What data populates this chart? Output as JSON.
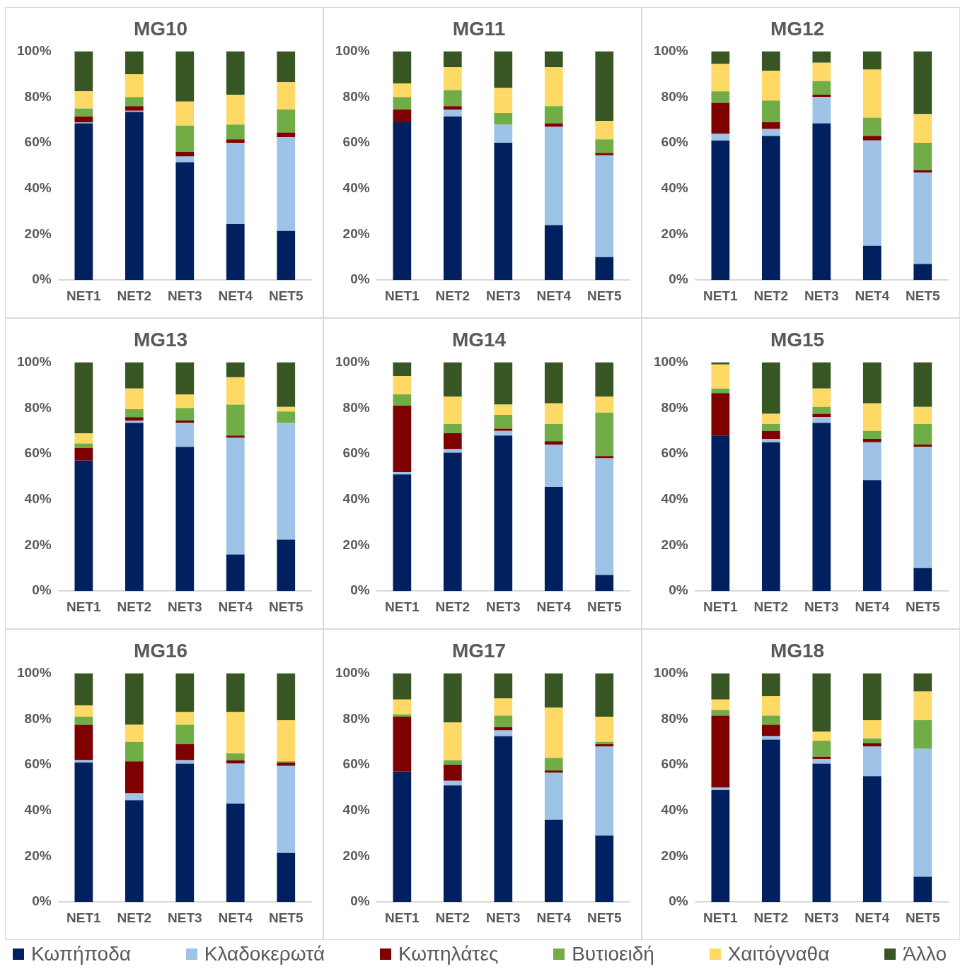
{
  "chart_data": [
    {
      "type": "bar",
      "stacked": true,
      "title": "MG10",
      "categories": [
        "NET1",
        "NET2",
        "NET3",
        "NET4",
        "NET5"
      ],
      "ylim": [
        0,
        100
      ],
      "yticks": [
        {
          "value": 0,
          "label": "0%"
        },
        {
          "value": 20,
          "label": "20%"
        },
        {
          "value": 40,
          "label": "40%"
        },
        {
          "value": 60,
          "label": "60%"
        },
        {
          "value": 80,
          "label": "80%"
        },
        {
          "value": 100,
          "label": "100%"
        }
      ],
      "grid": false,
      "legend": "bottom",
      "series": [
        {
          "name": "Κωπήποδα",
          "color": "#002060",
          "values": [
            68.5,
            73.5,
            51.5,
            24.5,
            21.5
          ]
        },
        {
          "name": "Κλαδοκερωτά",
          "color": "#9dc3e6",
          "values": [
            0.5,
            0.5,
            2.5,
            35.5,
            41
          ]
        },
        {
          "name": "Κωπηλάτες",
          "color": "#7f0000",
          "values": [
            2.5,
            2,
            2,
            1.5,
            2
          ]
        },
        {
          "name": "Βυτιοειδή",
          "color": "#70ad47",
          "values": [
            3.5,
            4,
            11.5,
            6.5,
            10
          ]
        },
        {
          "name": "Χαιτόγναθα",
          "color": "#ffd966",
          "values": [
            7.5,
            10,
            10.5,
            13,
            12
          ]
        },
        {
          "name": "Άλλο",
          "color": "#375623",
          "values": [
            17.5,
            10,
            22,
            19,
            13.5
          ]
        }
      ]
    },
    {
      "type": "bar",
      "stacked": true,
      "title": "MG11",
      "categories": [
        "NET1",
        "NET2",
        "NET3",
        "NET4",
        "NET5"
      ],
      "ylim": [
        0,
        100
      ],
      "yticks": [
        {
          "value": 0,
          "label": "0%"
        },
        {
          "value": 20,
          "label": "20%"
        },
        {
          "value": 40,
          "label": "40%"
        },
        {
          "value": 60,
          "label": "60%"
        },
        {
          "value": 80,
          "label": "80%"
        },
        {
          "value": 100,
          "label": "100%"
        }
      ],
      "grid": false,
      "series": [
        {
          "color": "#002060",
          "values": [
            69,
            71.5,
            60,
            24,
            10
          ]
        },
        {
          "color": "#9dc3e6",
          "values": [
            0,
            3,
            8,
            43,
            44.5
          ]
        },
        {
          "color": "#7f0000",
          "values": [
            5.5,
            1.5,
            0,
            1.5,
            1
          ]
        },
        {
          "color": "#70ad47",
          "values": [
            5.5,
            7,
            5,
            7.5,
            6
          ]
        },
        {
          "color": "#ffd966",
          "values": [
            6,
            10,
            11,
            17,
            8
          ]
        },
        {
          "color": "#375623",
          "values": [
            14,
            7,
            16,
            7,
            30.5
          ]
        }
      ]
    },
    {
      "type": "bar",
      "stacked": true,
      "title": "MG12",
      "categories": [
        "NET1",
        "NET2",
        "NET3",
        "NET4",
        "NET5"
      ],
      "ylim": [
        0,
        100
      ],
      "yticks": [
        {
          "value": 0,
          "label": "0%"
        },
        {
          "value": 20,
          "label": "20%"
        },
        {
          "value": 40,
          "label": "40%"
        },
        {
          "value": 60,
          "label": "60%"
        },
        {
          "value": 80,
          "label": "80%"
        },
        {
          "value": 100,
          "label": "100%"
        }
      ],
      "grid": false,
      "series": [
        {
          "color": "#002060",
          "values": [
            61,
            63,
            68.5,
            15,
            7
          ]
        },
        {
          "color": "#9dc3e6",
          "values": [
            3,
            3,
            11.5,
            46,
            40
          ]
        },
        {
          "color": "#7f0000",
          "values": [
            13.5,
            3,
            1,
            2,
            1
          ]
        },
        {
          "color": "#70ad47",
          "values": [
            5,
            9.5,
            6,
            8,
            12
          ]
        },
        {
          "color": "#ffd966",
          "values": [
            12,
            13,
            8,
            21,
            12.5
          ]
        },
        {
          "color": "#375623",
          "values": [
            5.5,
            8.5,
            5,
            8,
            27.5
          ]
        }
      ]
    },
    {
      "type": "bar",
      "stacked": true,
      "title": "MG13",
      "categories": [
        "NET1",
        "NET2",
        "NET3",
        "NET4",
        "NET5"
      ],
      "ylim": [
        0,
        100
      ],
      "yticks": [
        {
          "value": 0,
          "label": "0%"
        },
        {
          "value": 20,
          "label": "20%"
        },
        {
          "value": 40,
          "label": "40%"
        },
        {
          "value": 60,
          "label": "60%"
        },
        {
          "value": 80,
          "label": "80%"
        },
        {
          "value": 100,
          "label": "100%"
        }
      ],
      "grid": false,
      "series": [
        {
          "color": "#002060",
          "values": [
            57,
            73.5,
            63,
            16,
            22.5
          ]
        },
        {
          "color": "#9dc3e6",
          "values": [
            0,
            1,
            10.5,
            51,
            51
          ]
        },
        {
          "color": "#7f0000",
          "values": [
            5.5,
            1.5,
            1,
            1,
            0
          ]
        },
        {
          "color": "#70ad47",
          "values": [
            2,
            3.5,
            5.5,
            13.5,
            5
          ]
        },
        {
          "color": "#ffd966",
          "values": [
            4.5,
            9,
            6,
            12,
            2
          ]
        },
        {
          "color": "#375623",
          "values": [
            31,
            11.5,
            14,
            6.5,
            19.5
          ]
        }
      ]
    },
    {
      "type": "bar",
      "stacked": true,
      "title": "MG14",
      "categories": [
        "NET1",
        "NET2",
        "NET3",
        "NET4",
        "NET5"
      ],
      "ylim": [
        0,
        100
      ],
      "yticks": [
        {
          "value": 0,
          "label": "0%"
        },
        {
          "value": 20,
          "label": "20%"
        },
        {
          "value": 40,
          "label": "40%"
        },
        {
          "value": 60,
          "label": "60%"
        },
        {
          "value": 80,
          "label": "80%"
        },
        {
          "value": 100,
          "label": "100%"
        }
      ],
      "grid": false,
      "series": [
        {
          "color": "#002060",
          "values": [
            51,
            60.5,
            68,
            45.5,
            7
          ]
        },
        {
          "color": "#9dc3e6",
          "values": [
            1,
            1.5,
            2,
            18.5,
            51
          ]
        },
        {
          "color": "#7f0000",
          "values": [
            29,
            7,
            1,
            1.5,
            1
          ]
        },
        {
          "color": "#70ad47",
          "values": [
            5,
            4,
            6,
            7.5,
            19
          ]
        },
        {
          "color": "#ffd966",
          "values": [
            8,
            12,
            4.5,
            9,
            7
          ]
        },
        {
          "color": "#375623",
          "values": [
            6,
            15,
            18.5,
            18,
            15
          ]
        }
      ]
    },
    {
      "type": "bar",
      "stacked": true,
      "title": "MG15",
      "categories": [
        "NET1",
        "NET2",
        "NET3",
        "NET4",
        "NET5"
      ],
      "ylim": [
        0,
        100
      ],
      "yticks": [
        {
          "value": 0,
          "label": "0%"
        },
        {
          "value": 20,
          "label": "20%"
        },
        {
          "value": 40,
          "label": "40%"
        },
        {
          "value": 60,
          "label": "60%"
        },
        {
          "value": 80,
          "label": "80%"
        },
        {
          "value": 100,
          "label": "100%"
        }
      ],
      "grid": false,
      "series": [
        {
          "color": "#002060",
          "values": [
            68,
            65,
            73.5,
            48.5,
            10
          ]
        },
        {
          "color": "#9dc3e6",
          "values": [
            0,
            1.5,
            2.5,
            16.5,
            53
          ]
        },
        {
          "color": "#7f0000",
          "values": [
            18.5,
            3.5,
            1.5,
            1.5,
            1
          ]
        },
        {
          "color": "#70ad47",
          "values": [
            2,
            3,
            3,
            3.5,
            9
          ]
        },
        {
          "color": "#ffd966",
          "values": [
            10.5,
            4.5,
            8,
            12,
            7.5
          ]
        },
        {
          "color": "#375623",
          "values": [
            1,
            22.5,
            11.5,
            18,
            19.5
          ]
        }
      ]
    },
    {
      "type": "bar",
      "stacked": true,
      "title": "MG16",
      "categories": [
        "NET1",
        "NET2",
        "NET3",
        "NET4",
        "NET5"
      ],
      "ylim": [
        0,
        100
      ],
      "yticks": [
        {
          "value": 0,
          "label": "0%"
        },
        {
          "value": 20,
          "label": "20%"
        },
        {
          "value": 40,
          "label": "40%"
        },
        {
          "value": 60,
          "label": "60%"
        },
        {
          "value": 80,
          "label": "80%"
        },
        {
          "value": 100,
          "label": "100%"
        }
      ],
      "grid": false,
      "series": [
        {
          "color": "#002060",
          "values": [
            61,
            44.5,
            60.5,
            43,
            21.5
          ]
        },
        {
          "color": "#9dc3e6",
          "values": [
            1,
            3,
            1.5,
            17.5,
            38
          ]
        },
        {
          "color": "#7f0000",
          "values": [
            15.5,
            14,
            7,
            1.5,
            1.5
          ]
        },
        {
          "color": "#70ad47",
          "values": [
            3.5,
            8.5,
            8.5,
            3,
            0.5
          ]
        },
        {
          "color": "#ffd966",
          "values": [
            5,
            7.5,
            5.5,
            18,
            18
          ]
        },
        {
          "color": "#375623",
          "values": [
            14,
            22.5,
            17,
            17,
            20.5
          ]
        }
      ]
    },
    {
      "type": "bar",
      "stacked": true,
      "title": "MG17",
      "categories": [
        "NET1",
        "NET2",
        "NET3",
        "NET4",
        "NET5"
      ],
      "ylim": [
        0,
        100
      ],
      "yticks": [
        {
          "value": 0,
          "label": "0%"
        },
        {
          "value": 20,
          "label": "20%"
        },
        {
          "value": 40,
          "label": "40%"
        },
        {
          "value": 60,
          "label": "60%"
        },
        {
          "value": 80,
          "label": "80%"
        },
        {
          "value": 100,
          "label": "100%"
        }
      ],
      "grid": false,
      "series": [
        {
          "color": "#002060",
          "values": [
            57,
            51,
            72.5,
            36,
            29
          ]
        },
        {
          "color": "#9dc3e6",
          "values": [
            0,
            2,
            2.5,
            20.5,
            39
          ]
        },
        {
          "color": "#7f0000",
          "values": [
            24,
            7,
            1.5,
            1,
            1
          ]
        },
        {
          "color": "#70ad47",
          "values": [
            1,
            2,
            5,
            5.5,
            1
          ]
        },
        {
          "color": "#ffd966",
          "values": [
            6.5,
            16.5,
            7.5,
            22,
            11
          ]
        },
        {
          "color": "#375623",
          "values": [
            11.5,
            21.5,
            11,
            15,
            19
          ]
        }
      ]
    },
    {
      "type": "bar",
      "stacked": true,
      "title": "MG18",
      "categories": [
        "NET1",
        "NET2",
        "NET3",
        "NET4",
        "NET5"
      ],
      "ylim": [
        0,
        100
      ],
      "yticks": [
        {
          "value": 0,
          "label": "0%"
        },
        {
          "value": 20,
          "label": "20%"
        },
        {
          "value": 40,
          "label": "40%"
        },
        {
          "value": 60,
          "label": "60%"
        },
        {
          "value": 80,
          "label": "80%"
        },
        {
          "value": 100,
          "label": "100%"
        }
      ],
      "grid": false,
      "series": [
        {
          "color": "#002060",
          "values": [
            49,
            71,
            60.5,
            55,
            11
          ]
        },
        {
          "color": "#9dc3e6",
          "values": [
            1,
            1.5,
            2,
            13,
            56
          ]
        },
        {
          "color": "#7f0000",
          "values": [
            31.5,
            5,
            1,
            1.5,
            0
          ]
        },
        {
          "color": "#70ad47",
          "values": [
            2.5,
            4,
            7,
            2,
            12.5
          ]
        },
        {
          "color": "#ffd966",
          "values": [
            4.5,
            8.5,
            4,
            8,
            12.5
          ]
        },
        {
          "color": "#375623",
          "values": [
            11.5,
            10,
            25.5,
            20.5,
            8
          ]
        }
      ]
    }
  ]
}
